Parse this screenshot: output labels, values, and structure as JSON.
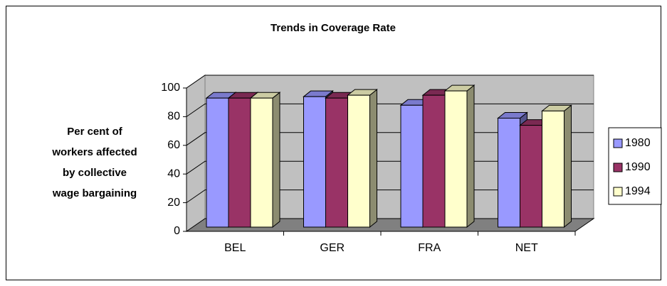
{
  "chart_data": {
    "type": "bar3d",
    "title": "Trends in Coverage Rate",
    "ylabel": [
      "Per cent of",
      "workers affected",
      "by collective",
      "wage bargaining"
    ],
    "categories": [
      "BEL",
      "GER",
      "FRA",
      "NET"
    ],
    "series": [
      {
        "name": "1980",
        "color": "#9999ff",
        "values": [
          90,
          91,
          85,
          76
        ]
      },
      {
        "name": "1990",
        "color": "#993366",
        "values": [
          90,
          90,
          92,
          71
        ]
      },
      {
        "name": "1994",
        "color": "#ffffcc",
        "values": [
          90,
          92,
          95,
          81
        ]
      }
    ],
    "ylim": [
      0,
      100
    ],
    "yticks": [
      0,
      20,
      40,
      60,
      80,
      100
    ],
    "grid": true,
    "legend": "right"
  }
}
